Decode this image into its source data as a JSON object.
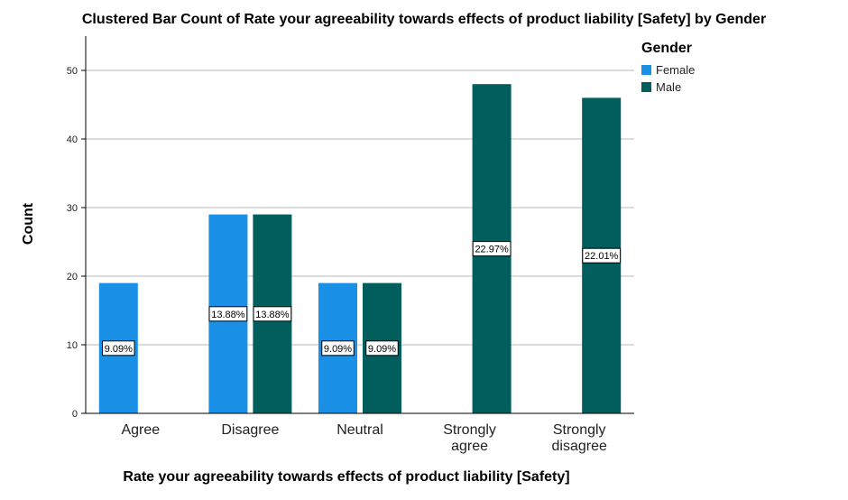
{
  "chart_data": {
    "type": "bar",
    "title": "Clustered Bar Count of Rate your agreeability towards effects of product liability  [Safety] by Gender",
    "xlabel": "Rate your agreeability towards effects of product liability  [Safety]",
    "ylabel": "Count",
    "categories": [
      [
        "Agree"
      ],
      [
        "Disagree"
      ],
      [
        "Neutral"
      ],
      [
        "Strongly",
        "agree"
      ],
      [
        "Strongly",
        "disagree"
      ]
    ],
    "ylim": [
      0,
      55
    ],
    "yticks": [
      0,
      10,
      20,
      30,
      40,
      50
    ],
    "grid": true,
    "legend": {
      "title": "Gender",
      "position": "top-right"
    },
    "series": [
      {
        "name": "Female",
        "color": "#1a91e6",
        "values": [
          19,
          29,
          19,
          0,
          0
        ],
        "labels": [
          "9.09%",
          "13.88%",
          "9.09%",
          "",
          ""
        ]
      },
      {
        "name": "Male",
        "color": "#005e5c",
        "values": [
          0,
          29,
          19,
          48,
          46
        ],
        "labels": [
          "",
          "13.88%",
          "9.09%",
          "22.97%",
          "22.01%"
        ]
      }
    ]
  }
}
